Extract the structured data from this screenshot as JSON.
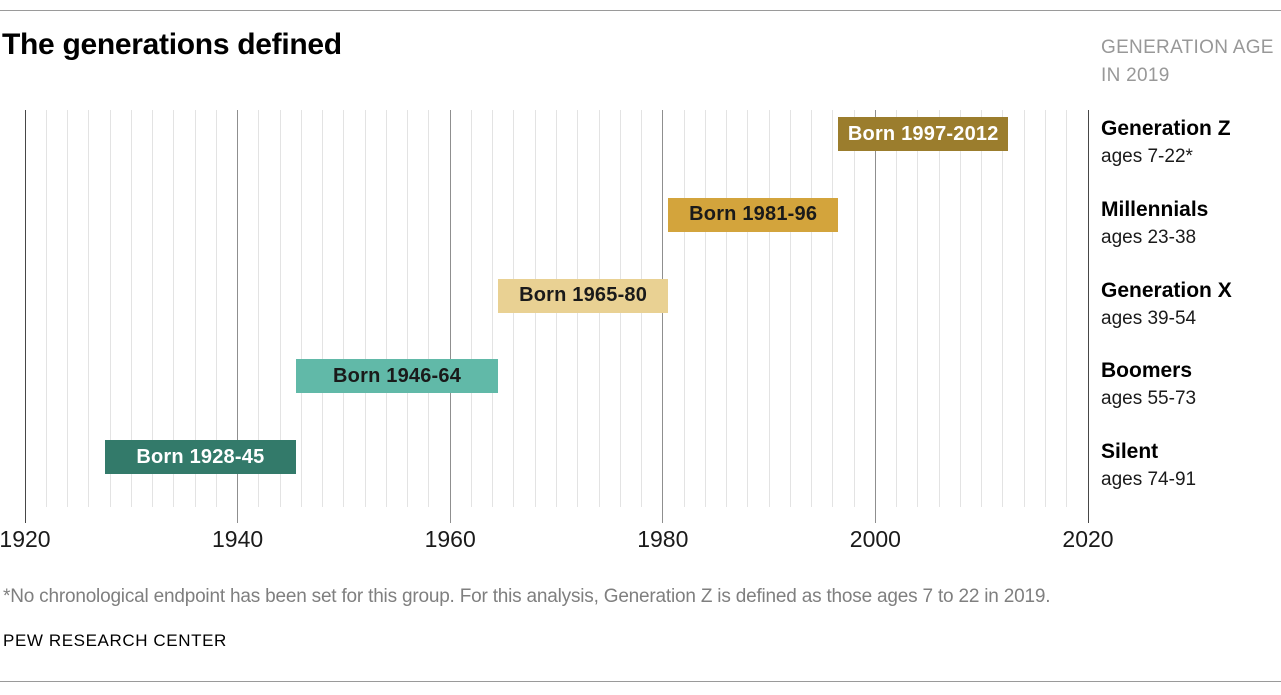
{
  "header": {
    "title": "The generations defined",
    "age_note_line1": "GENERATION AGE",
    "age_note_line2": "IN 2019"
  },
  "chart_data": {
    "type": "bar",
    "subtype": "horizontal-timeline",
    "title": "The generations defined",
    "x_axis": {
      "min": 1920,
      "max": 2020,
      "ticks": [
        "1920",
        "1940",
        "1960",
        "1980",
        "2000",
        "2020"
      ],
      "minor_gridline_step_years": 2,
      "grid": true
    },
    "series": [
      {
        "name": "Generation Z",
        "ages_label": "ages 7-22*",
        "bar_label": "Born 1997-2012",
        "born_start": 1997,
        "born_end": 2012,
        "bar_color": "#9b7d2d",
        "bar_text_color": "#ffffff"
      },
      {
        "name": "Millennials",
        "ages_label": "ages 23-38",
        "bar_label": "Born 1981-96",
        "born_start": 1981,
        "born_end": 1996,
        "bar_color": "#d3a43c",
        "bar_text_color": "#1a1a1a"
      },
      {
        "name": "Generation X",
        "ages_label": "ages 39-54",
        "bar_label": "Born 1965-80",
        "born_start": 1965,
        "born_end": 1980,
        "bar_color": "#e9d193",
        "bar_text_color": "#1a1a1a"
      },
      {
        "name": "Boomers",
        "ages_label": "ages 55-73",
        "bar_label": "Born 1946-64",
        "born_start": 1946,
        "born_end": 1964,
        "bar_color": "#61b9a8",
        "bar_text_color": "#1a1a1a"
      },
      {
        "name": "Silent",
        "ages_label": "ages 74-91",
        "bar_label": "Born 1928-45",
        "born_start": 1928,
        "born_end": 1945,
        "bar_color": "#337a6a",
        "bar_text_color": "#ffffff"
      }
    ],
    "colors": {
      "minor_gridline": "#e3e3e3",
      "decade_gridline": "#8f8f8f",
      "edge_gridline": "#474747"
    }
  },
  "footer": {
    "footnote": "*No chronological endpoint has been set for this group. For this analysis, Generation Z is defined as those ages 7 to 22 in 2019.",
    "source": "PEW RESEARCH CENTER"
  }
}
